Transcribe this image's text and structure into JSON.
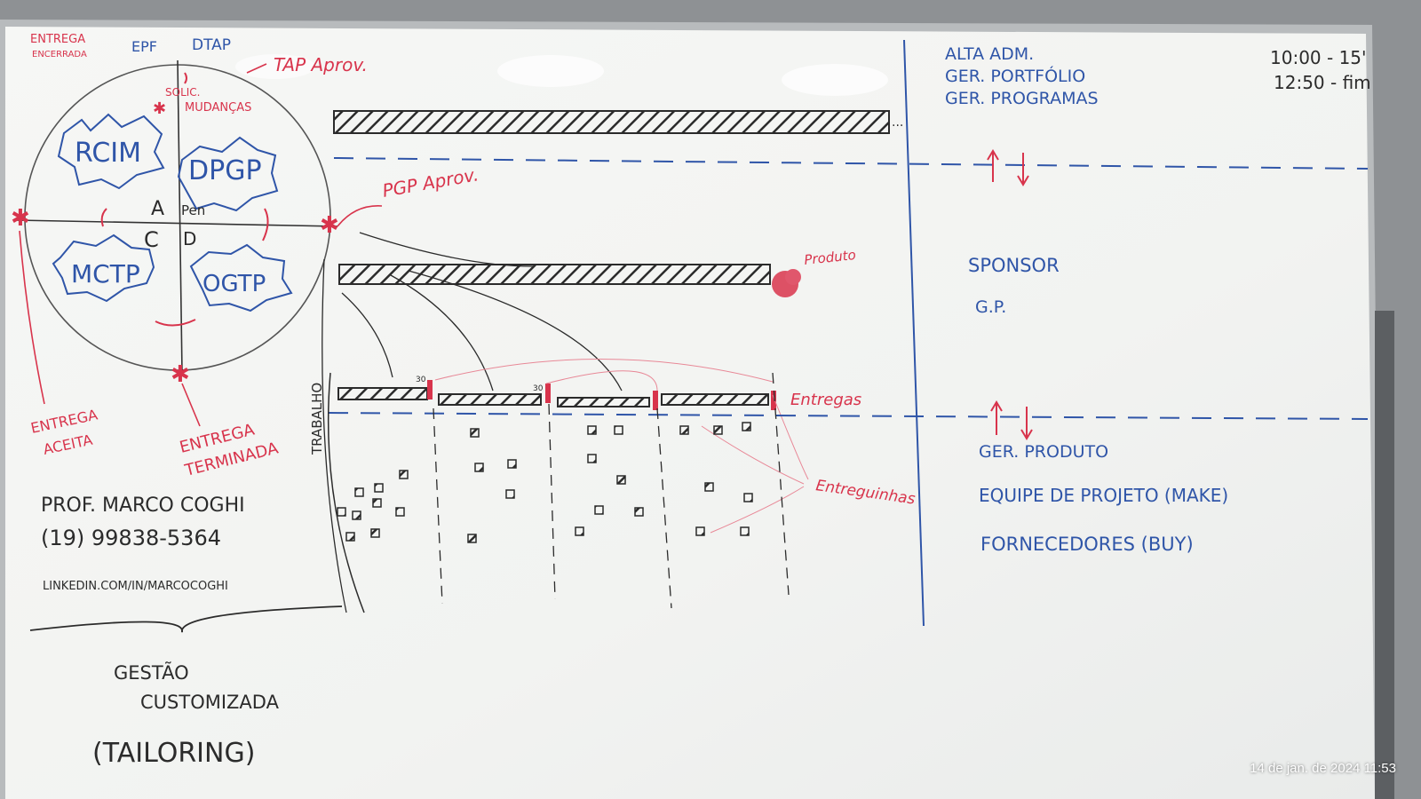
{
  "whiteboard": {
    "timestamp": "14 de jan. de 2024 11:53",
    "circle": {
      "top_labels": [
        "ENTREGA",
        "ENCERRADA",
        "EPF",
        "DTAP",
        "TAP Aprov."
      ],
      "change_label_1": "SOLIC.",
      "change_label_2": "MUDANÇAS",
      "quadrants": [
        "RCIM",
        "DPGP",
        "MCTP",
        "OGTP"
      ],
      "center_top": "A",
      "center_top_b": "Pen",
      "center_bottom": "C",
      "center_bottom_b": "D",
      "bottom_left_1": "ENTREGA",
      "bottom_left_2": "ACEITA",
      "bottom_right_1": "ENTREGA",
      "bottom_right_2": "TERMINADA"
    },
    "timeline": {
      "pgp_label": "PGP Aprov.",
      "produto_label": "Produto",
      "entregas_label": "Entregas",
      "entreguinhas_label": "Entreguinhas",
      "trabalho_label": "TRABALHO",
      "marker_30_a": "30",
      "marker_30_b": "30"
    },
    "contact": {
      "name": "PROF. MARCO COGHI",
      "phone": "(19) 99838-5364",
      "linkedin": "LINKEDIN.COM/IN/MARCOCOGHI"
    },
    "tailoring": {
      "line1": "GESTÃO",
      "line2": "CUSTOMIZADA",
      "line3": "(TAILORING)"
    },
    "roles": {
      "top": [
        "ALTA ADM.",
        "GER. PORTFÓLIO",
        "GER. PROGRAMAS"
      ],
      "middle": [
        "SPONSOR",
        "G.P."
      ],
      "bottom": [
        "GER. PRODUTO",
        "EQUIPE DE PROJETO (MAKE)",
        "FORNECEDORES (BUY)"
      ]
    },
    "times": [
      "10:00 - 15'",
      "12:50 - fim"
    ]
  },
  "colors": {
    "board": "#f4f5f3",
    "red_marker": "#d8344c",
    "blue_marker": "#2f55a8",
    "black_marker": "#2b2b2b"
  }
}
